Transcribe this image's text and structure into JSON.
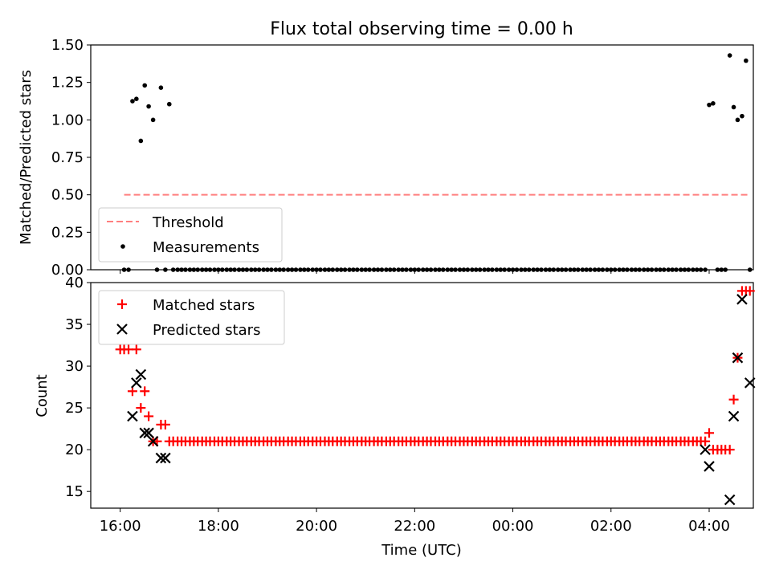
{
  "figure_title": "Flux total observing time = 0.00 h",
  "chart_data": [
    {
      "panel": "top",
      "type": "scatter",
      "title": "Flux total observing time = 0.00 h",
      "xlabel": "",
      "ylabel": "Matched/Predicted stars",
      "xlim": [
        -0.6,
        12.9
      ],
      "ylim": [
        0,
        1.5
      ],
      "x_unit": "hours since 16:00 UTC",
      "xticks": [
        0,
        2,
        4,
        6,
        8,
        10,
        12
      ],
      "yticks": [
        0.0,
        0.25,
        0.5,
        0.75,
        1.0,
        1.25,
        1.5
      ],
      "ytick_labels": [
        "0.00",
        "0.25",
        "0.50",
        "0.75",
        "1.00",
        "1.25",
        "1.50"
      ],
      "grid": false,
      "legend_position": "lower-left",
      "series": [
        {
          "name": "Threshold",
          "kind": "line",
          "style": "dashed",
          "color": "#ff7f7f",
          "x": [
            0.08,
            12.83
          ],
          "y": [
            0.5,
            0.5
          ]
        },
        {
          "name": "Measurements",
          "kind": "scatter",
          "marker": "dot",
          "color": "#000000",
          "x": [
            0.08,
            0.17,
            0.25,
            0.33,
            0.42,
            0.5,
            0.58,
            0.67,
            0.75,
            0.83,
            0.92,
            1.0,
            1.08,
            1.17,
            1.25,
            1.33,
            1.42,
            1.5,
            1.58,
            1.67,
            1.75,
            1.83,
            1.92,
            2.0,
            2.08,
            2.17,
            2.25,
            2.33,
            2.42,
            2.5,
            2.58,
            2.67,
            2.75,
            2.83,
            2.92,
            3.0,
            3.08,
            3.17,
            3.25,
            3.33,
            3.42,
            3.5,
            3.58,
            3.67,
            3.75,
            3.83,
            3.92,
            4.0,
            4.08,
            4.17,
            4.25,
            4.33,
            4.42,
            4.5,
            4.58,
            4.67,
            4.75,
            4.83,
            4.92,
            5.0,
            5.08,
            5.17,
            5.25,
            5.33,
            5.42,
            5.5,
            5.58,
            5.67,
            5.75,
            5.83,
            5.92,
            6.0,
            6.08,
            6.17,
            6.25,
            6.33,
            6.42,
            6.5,
            6.58,
            6.67,
            6.75,
            6.83,
            6.92,
            7.0,
            7.08,
            7.17,
            7.25,
            7.33,
            7.42,
            7.5,
            7.58,
            7.67,
            7.75,
            7.83,
            7.92,
            8.0,
            8.08,
            8.17,
            8.25,
            8.33,
            8.42,
            8.5,
            8.58,
            8.67,
            8.75,
            8.83,
            8.92,
            9.0,
            9.08,
            9.17,
            9.25,
            9.33,
            9.42,
            9.5,
            9.58,
            9.67,
            9.75,
            9.83,
            9.92,
            10.0,
            10.08,
            10.17,
            10.25,
            10.33,
            10.42,
            10.5,
            10.58,
            10.67,
            10.75,
            10.83,
            10.92,
            11.0,
            11.08,
            11.17,
            11.25,
            11.33,
            11.42,
            11.5,
            11.58,
            11.67,
            11.75,
            11.83,
            11.92,
            12.0,
            12.08,
            12.17,
            12.25,
            12.33,
            12.42,
            12.5,
            12.58,
            12.67,
            12.75,
            12.83
          ],
          "y": [
            0,
            0,
            1.125,
            1.14,
            0.86,
            1.23,
            1.09,
            1.0,
            0,
            1.215,
            0,
            1.105,
            0,
            0,
            0,
            0,
            0,
            0,
            0,
            0,
            0,
            0,
            0,
            0,
            0,
            0,
            0,
            0,
            0,
            0,
            0,
            0,
            0,
            0,
            0,
            0,
            0,
            0,
            0,
            0,
            0,
            0,
            0,
            0,
            0,
            0,
            0,
            0,
            0,
            0,
            0,
            0,
            0,
            0,
            0,
            0,
            0,
            0,
            0,
            0,
            0,
            0,
            0,
            0,
            0,
            0,
            0,
            0,
            0,
            0,
            0,
            0,
            0,
            0,
            0,
            0,
            0,
            0,
            0,
            0,
            0,
            0,
            0,
            0,
            0,
            0,
            0,
            0,
            0,
            0,
            0,
            0,
            0,
            0,
            0,
            0,
            0,
            0,
            0,
            0,
            0,
            0,
            0,
            0,
            0,
            0,
            0,
            0,
            0,
            0,
            0,
            0,
            0,
            0,
            0,
            0,
            0,
            0,
            0,
            0,
            0,
            0,
            0,
            0,
            0,
            0,
            0,
            0,
            0,
            0,
            0,
            0,
            0,
            0,
            0,
            0,
            0,
            0,
            0,
            0,
            0,
            0,
            0,
            1.1,
            1.11,
            0,
            0,
            0,
            1.43,
            1.085,
            1.0,
            1.025,
            1.395,
            0
          ]
        }
      ]
    },
    {
      "panel": "bottom",
      "type": "scatter",
      "title": "",
      "xlabel": "Time (UTC)",
      "ylabel": "Count",
      "xlim": [
        -0.6,
        12.9
      ],
      "ylim": [
        13,
        40
      ],
      "x_unit": "hours since 16:00 UTC",
      "xticks": [
        0,
        2,
        4,
        6,
        8,
        10,
        12
      ],
      "xtick_labels": [
        "16:00",
        "18:00",
        "20:00",
        "22:00",
        "00:00",
        "02:00",
        "04:00"
      ],
      "yticks": [
        15,
        20,
        25,
        30,
        35,
        40
      ],
      "ytick_labels": [
        "15",
        "20",
        "25",
        "30",
        "35",
        "40"
      ],
      "grid": false,
      "legend_position": "top-left",
      "series": [
        {
          "name": "Matched stars",
          "kind": "scatter",
          "marker": "plus",
          "color": "#ff0000",
          "x": [
            0.0,
            0.08,
            0.17,
            0.25,
            0.33,
            0.42,
            0.5,
            0.58,
            0.67,
            0.75,
            0.83,
            0.92,
            1.0,
            1.08,
            1.17,
            1.25,
            1.33,
            1.42,
            1.5,
            1.58,
            1.67,
            1.75,
            1.83,
            1.92,
            2.0,
            2.08,
            2.17,
            2.25,
            2.33,
            2.42,
            2.5,
            2.58,
            2.67,
            2.75,
            2.83,
            2.92,
            3.0,
            3.08,
            3.17,
            3.25,
            3.33,
            3.42,
            3.5,
            3.58,
            3.67,
            3.75,
            3.83,
            3.92,
            4.0,
            4.08,
            4.17,
            4.25,
            4.33,
            4.42,
            4.5,
            4.58,
            4.67,
            4.75,
            4.83,
            4.92,
            5.0,
            5.08,
            5.17,
            5.25,
            5.33,
            5.42,
            5.5,
            5.58,
            5.67,
            5.75,
            5.83,
            5.92,
            6.0,
            6.08,
            6.17,
            6.25,
            6.33,
            6.42,
            6.5,
            6.58,
            6.67,
            6.75,
            6.83,
            6.92,
            7.0,
            7.08,
            7.17,
            7.25,
            7.33,
            7.42,
            7.5,
            7.58,
            7.67,
            7.75,
            7.83,
            7.92,
            8.0,
            8.08,
            8.17,
            8.25,
            8.33,
            8.42,
            8.5,
            8.58,
            8.67,
            8.75,
            8.83,
            8.92,
            9.0,
            9.08,
            9.17,
            9.25,
            9.33,
            9.42,
            9.5,
            9.58,
            9.67,
            9.75,
            9.83,
            9.92,
            10.0,
            10.08,
            10.17,
            10.25,
            10.33,
            10.42,
            10.5,
            10.58,
            10.67,
            10.75,
            10.83,
            10.92,
            11.0,
            11.08,
            11.17,
            11.25,
            11.33,
            11.42,
            11.5,
            11.58,
            11.67,
            11.75,
            11.83,
            11.92,
            12.0,
            12.08,
            12.17,
            12.25,
            12.33,
            12.42,
            12.5,
            12.58,
            12.67,
            12.75,
            12.83
          ],
          "y": [
            32,
            32,
            32,
            27,
            32,
            25,
            27,
            24,
            21,
            21,
            23,
            23,
            21,
            21,
            21,
            21,
            21,
            21,
            21,
            21,
            21,
            21,
            21,
            21,
            21,
            21,
            21,
            21,
            21,
            21,
            21,
            21,
            21,
            21,
            21,
            21,
            21,
            21,
            21,
            21,
            21,
            21,
            21,
            21,
            21,
            21,
            21,
            21,
            21,
            21,
            21,
            21,
            21,
            21,
            21,
            21,
            21,
            21,
            21,
            21,
            21,
            21,
            21,
            21,
            21,
            21,
            21,
            21,
            21,
            21,
            21,
            21,
            21,
            21,
            21,
            21,
            21,
            21,
            21,
            21,
            21,
            21,
            21,
            21,
            21,
            21,
            21,
            21,
            21,
            21,
            21,
            21,
            21,
            21,
            21,
            21,
            21,
            21,
            21,
            21,
            21,
            21,
            21,
            21,
            21,
            21,
            21,
            21,
            21,
            21,
            21,
            21,
            21,
            21,
            21,
            21,
            21,
            21,
            21,
            21,
            21,
            21,
            21,
            21,
            21,
            21,
            21,
            21,
            21,
            21,
            21,
            21,
            21,
            21,
            21,
            21,
            21,
            21,
            21,
            21,
            21,
            21,
            21,
            21,
            22,
            20,
            20,
            20,
            20,
            20,
            26,
            31,
            39,
            39,
            39
          ]
        },
        {
          "name": "Predicted stars",
          "kind": "scatter",
          "marker": "x",
          "color": "#000000",
          "x": [
            0.25,
            0.33,
            0.42,
            0.5,
            0.58,
            0.67,
            0.83,
            0.92,
            11.92,
            12.0,
            12.42,
            12.5,
            12.58,
            12.67,
            12.83
          ],
          "y": [
            24,
            28,
            29,
            22,
            22,
            21,
            19,
            19,
            20,
            18,
            14,
            24,
            31,
            38,
            28
          ]
        }
      ]
    }
  ]
}
